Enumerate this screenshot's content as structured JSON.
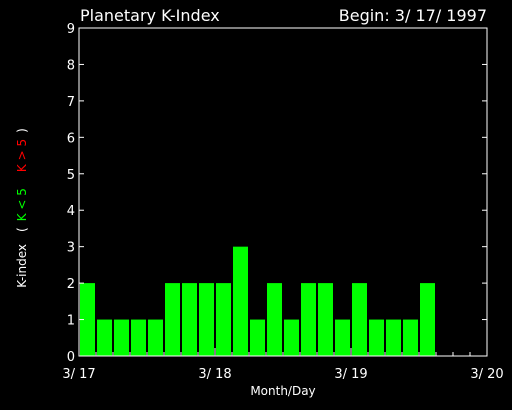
{
  "chart_data": {
    "type": "bar",
    "title": "Planetary K-Index",
    "subtitle": "Begin: 3/ 17/ 1997",
    "xlabel": "Month/Day",
    "ylabel_parts": [
      "K-index",
      "(",
      "K < 5",
      "K > 5",
      ")"
    ],
    "ylim": [
      0,
      9
    ],
    "yticks": [
      "0",
      "1",
      "2",
      "3",
      "4",
      "5",
      "6",
      "7",
      "8",
      "9"
    ],
    "xticks": [
      "3/ 17",
      "3/ 18",
      "3/ 19",
      "3/ 20"
    ],
    "x_days": 3,
    "bins_per_day": 8,
    "values": [
      2,
      1,
      1,
      1,
      1,
      2,
      2,
      2,
      2,
      3,
      1,
      2,
      1,
      2,
      2,
      1,
      2,
      1,
      1,
      1,
      2
    ],
    "threshold": 5,
    "colors": {
      "below": "#00ff00",
      "above": "#ff0000",
      "axis": "#ffffff",
      "background": "#000000"
    }
  }
}
